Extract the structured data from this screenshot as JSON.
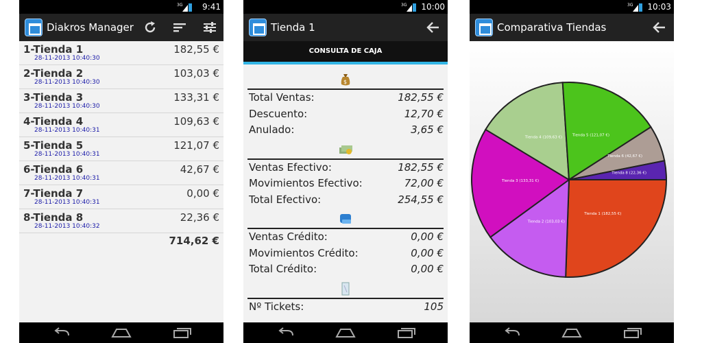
{
  "screen1": {
    "time": "9:41",
    "title": "Diakros Manager",
    "icons": [
      "refresh-icon",
      "sort-icon",
      "settings-icon"
    ],
    "stores": [
      {
        "name": "1-Tienda 1",
        "amount": "182,55 €",
        "date": "28-11-2013 10:40:30"
      },
      {
        "name": "2-Tienda 2",
        "amount": "103,03 €",
        "date": "28-11-2013 10:40:30"
      },
      {
        "name": "3-Tienda 3",
        "amount": "133,31 €",
        "date": "28-11-2013 10:40:30"
      },
      {
        "name": "4-Tienda 4",
        "amount": "109,63 €",
        "date": "28-11-2013 10:40:31"
      },
      {
        "name": "5-Tienda 5",
        "amount": "121,07 €",
        "date": "28-11-2013 10:40:31"
      },
      {
        "name": "6-Tienda 6",
        "amount": "42,67 €",
        "date": "28-11-2013 10:40:31"
      },
      {
        "name": "7-Tienda 7",
        "amount": "0,00 €",
        "date": "28-11-2013 10:40:31"
      },
      {
        "name": "8-Tienda 8",
        "amount": "22,36 €",
        "date": "28-11-2013 10:40:32"
      }
    ],
    "total": "714,62 €"
  },
  "screen2": {
    "time": "10:00",
    "title": "Tienda 1",
    "subtitle": "CONSULTA DE CAJA",
    "sections": [
      {
        "icon": "money-bag-icon",
        "rows": [
          {
            "label": "Total Ventas:",
            "value": "182,55 €"
          },
          {
            "label": "Descuento:",
            "value": "12,70 €"
          },
          {
            "label": "Anulado:",
            "value": "3,65 €"
          }
        ]
      },
      {
        "icon": "cash-icon",
        "rows": [
          {
            "label": "Ventas Efectivo:",
            "value": "182,55 €"
          },
          {
            "label": "Movimientos Efectivo:",
            "value": "72,00 €"
          },
          {
            "label": "Total Efectivo:",
            "value": "254,55 €"
          }
        ]
      },
      {
        "icon": "credit-card-icon",
        "rows": [
          {
            "label": "Ventas Crédito:",
            "value": "0,00 €"
          },
          {
            "label": "Movimientos Crédito:",
            "value": "0,00 €"
          },
          {
            "label": "Total Crédito:",
            "value": "0,00 €"
          }
        ]
      },
      {
        "icon": "ticket-icon",
        "rows": [
          {
            "label": "Nº Tickets:",
            "value": "105"
          }
        ]
      }
    ]
  },
  "screen3": {
    "time": "10:03",
    "title": "Comparativa Tiendas",
    "chart_data": {
      "type": "pie",
      "slices": [
        {
          "label": "Tienda 1 (182,55 €)",
          "value": 182.55,
          "color": "#e0451c"
        },
        {
          "label": "Tienda 2 (103,03 €)",
          "value": 103.03,
          "color": "#c55cf0"
        },
        {
          "label": "Tienda 3 (133,31 €)",
          "value": 133.31,
          "color": "#d10fbf"
        },
        {
          "label": "Tienda 4 (109,63 €)",
          "value": 109.63,
          "color": "#a9cf8f"
        },
        {
          "label": "Tienda 5 (121,07 €)",
          "value": 121.07,
          "color": "#4cc41c"
        },
        {
          "label": "Tienda 6 (42,67 €)",
          "value": 42.67,
          "color": "#ad9d95"
        },
        {
          "label": "Tienda 8 (22,36 €)",
          "value": 22.36,
          "color": "#5a25b0"
        }
      ]
    }
  }
}
